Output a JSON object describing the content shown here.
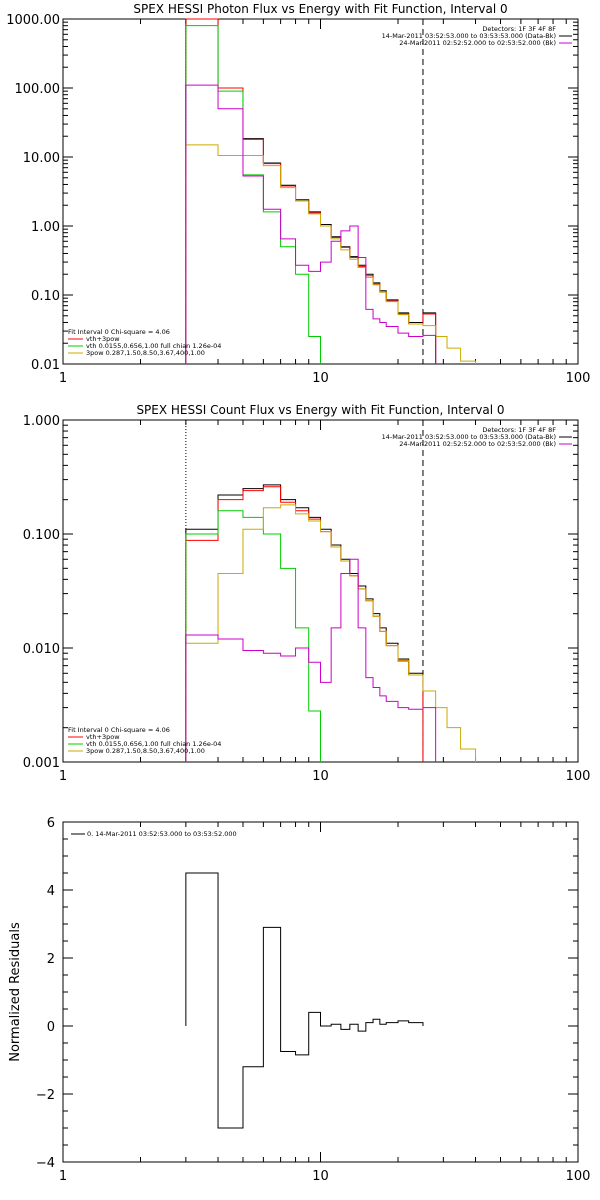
{
  "chart_data": [
    {
      "type": "line",
      "title": "SPEX HESSI Photon Flux vs Energy with Fit Function, Interval 0",
      "xscale": "log",
      "yscale": "log",
      "xlim": [
        1,
        100
      ],
      "ylim": [
        0.01,
        1000
      ],
      "xticks": [
        "1",
        "10",
        "100"
      ],
      "yticks": [
        "0.01",
        "0.10",
        "1.00",
        "10.00",
        "100.00",
        "1000.00"
      ],
      "xlabel": "",
      "ylabel": "",
      "bin_edges": [
        3,
        4,
        5,
        6,
        7,
        8,
        9,
        10,
        11,
        12,
        13,
        14,
        15,
        16,
        17,
        18,
        20,
        22,
        25,
        28,
        31,
        35,
        40
      ],
      "vlines": [
        {
          "x": 3,
          "style": "dotted"
        },
        {
          "x": 25,
          "style": "dashed"
        }
      ],
      "legend_top_right": [
        "Detectors: 1F 3F 4F 8F",
        "14-Mar-2011 03:52:53.000 to 03:53:53.000 (Data-Bk)",
        "24-Mar-2011 02:52:52.000 to 02:53:52.000 (Bk)"
      ],
      "legend_bottom_left": [
        "Fit Interval 0   Chi-square = 4.06",
        "vth+3pow",
        "vth 0.0155,0.656,1.00  full chian 1.26e-04",
        "3pow 0.287,1.50,8.50,3.67,400,1.00"
      ],
      "series": [
        {
          "name": "",
          "color": "#000000",
          "values": [
            1000,
            100,
            18.5,
            8.2,
            3.9,
            2.4,
            1.6,
            1.05,
            0.7,
            0.5,
            0.36,
            0.27,
            0.2,
            0.15,
            0.115,
            0.085,
            0.055,
            0.04,
            0.055,
            null,
            null,
            null
          ]
        },
        {
          "name": "vth+3pow",
          "color": "#ff0000",
          "values": [
            1000,
            100,
            18,
            8,
            3.8,
            2.3,
            1.55,
            1.0,
            0.68,
            0.49,
            0.35,
            0.26,
            0.19,
            0.145,
            0.11,
            0.082,
            0.053,
            0.038,
            0.053,
            null,
            null,
            null
          ]
        },
        {
          "name": "vth",
          "color": "#00cc00",
          "values": [
            800,
            90,
            5.5,
            1.6,
            0.5,
            0.2,
            0.025,
            null,
            null,
            null,
            null,
            null,
            null,
            null,
            null,
            null,
            null,
            null,
            null,
            null,
            null,
            null
          ]
        },
        {
          "name": "3pow",
          "color": "#ccaa00",
          "values": [
            15,
            10.5,
            10.5,
            7.5,
            3.6,
            2.3,
            1.5,
            1.0,
            0.65,
            0.45,
            0.33,
            0.25,
            0.18,
            0.14,
            0.11,
            0.08,
            0.052,
            0.038,
            0.036,
            0.025,
            0.017,
            0.011
          ]
        },
        {
          "name": "Bk",
          "color": "#cc00cc",
          "values": [
            110,
            50,
            5.3,
            1.75,
            0.65,
            0.27,
            0.22,
            0.3,
            0.6,
            0.85,
            1.0,
            0.35,
            0.062,
            0.045,
            0.04,
            0.035,
            0.028,
            0.025,
            0.026,
            null,
            null,
            null
          ]
        }
      ]
    },
    {
      "type": "line",
      "title": "SPEX HESSI Count Flux vs Energy with Fit Function, Interval 0",
      "xscale": "log",
      "yscale": "log",
      "xlim": [
        1,
        100
      ],
      "ylim": [
        0.001,
        1
      ],
      "xticks": [
        "1",
        "10",
        "100"
      ],
      "yticks": [
        "0.001",
        "0.010",
        "0.100",
        "1.000"
      ],
      "xlabel": "",
      "ylabel": "",
      "bin_edges": [
        3,
        4,
        5,
        6,
        7,
        8,
        9,
        10,
        11,
        12,
        13,
        14,
        15,
        16,
        17,
        18,
        20,
        22,
        25,
        28,
        31,
        35,
        40
      ],
      "vlines": [
        {
          "x": 3,
          "style": "dotted"
        },
        {
          "x": 25,
          "style": "dashed"
        }
      ],
      "legend_top_right": [
        "Detectors: 1F 3F 4F 8F",
        "14-Mar-2011 03:52:53.000 to 03:53:53.000 (Data-Bk)",
        "24-Mar-2011 02:52:52.000 to 02:53:52.000 (Bk)"
      ],
      "legend_bottom_left": [
        "Fit Interval 0   Chi-square = 4.06",
        "vth+3pow",
        "vth 0.0155,0.656,1.00  full chian 1.26e-04",
        "3pow 0.287,1.50,8.50,3.67,400,1.00"
      ],
      "series": [
        {
          "name": "",
          "color": "#000000",
          "values": [
            0.11,
            0.22,
            0.25,
            0.27,
            0.2,
            0.17,
            0.14,
            0.11,
            0.08,
            0.06,
            0.045,
            0.035,
            0.027,
            0.02,
            0.015,
            0.011,
            0.008,
            0.006,
            null,
            null,
            null,
            null
          ]
        },
        {
          "name": "vth+3pow",
          "color": "#ff0000",
          "values": [
            0.088,
            0.2,
            0.24,
            0.26,
            0.19,
            0.16,
            0.135,
            0.105,
            0.077,
            0.058,
            0.043,
            0.033,
            0.026,
            0.019,
            0.014,
            0.0105,
            0.0077,
            0.0058,
            null,
            null,
            null,
            null
          ]
        },
        {
          "name": "vth",
          "color": "#00cc00",
          "values": [
            0.1,
            0.16,
            0.14,
            0.1,
            0.05,
            0.015,
            0.0028,
            null,
            null,
            null,
            null,
            null,
            null,
            null,
            null,
            null,
            null,
            null,
            null,
            null,
            null,
            null
          ]
        },
        {
          "name": "3pow",
          "color": "#ccaa00",
          "values": [
            0.011,
            0.045,
            0.11,
            0.17,
            0.18,
            0.15,
            0.13,
            0.105,
            0.077,
            0.058,
            0.043,
            0.033,
            0.026,
            0.019,
            0.014,
            0.0105,
            0.0078,
            0.0058,
            0.0042,
            0.003,
            0.002,
            0.0013
          ]
        },
        {
          "name": "Bk",
          "color": "#cc00cc",
          "values": [
            0.013,
            0.012,
            0.0095,
            0.009,
            0.0085,
            0.01,
            0.0075,
            0.005,
            0.015,
            0.045,
            0.06,
            0.015,
            0.0055,
            0.0045,
            0.0038,
            0.0034,
            0.003,
            0.0029,
            0.003,
            null,
            null,
            null
          ]
        }
      ]
    },
    {
      "type": "line",
      "title": "",
      "xscale": "log",
      "yscale": "linear",
      "xlim": [
        1,
        100
      ],
      "ylim": [
        -4,
        6
      ],
      "xticks": [
        "1",
        "10",
        "100"
      ],
      "yticks": [
        "−4",
        "−2",
        "0",
        "2",
        "4",
        "6"
      ],
      "xlabel": "",
      "ylabel": "Normalized Residuals",
      "bin_edges": [
        3,
        4,
        5,
        6,
        7,
        8,
        9,
        10,
        11,
        12,
        13,
        14,
        15,
        16,
        17,
        18,
        20,
        22,
        25
      ],
      "legend": "0. 14-Mar-2011 03:52:53.000 to 03:53:52.000",
      "series": [
        {
          "name": "0. 14-Mar-2011 03:52:53.000 to 03:53:52.000",
          "color": "#000000",
          "values": [
            4.5,
            -3.0,
            -1.2,
            2.9,
            -0.75,
            -0.85,
            0.4,
            0.0,
            0.05,
            -0.1,
            0.05,
            -0.15,
            0.1,
            0.2,
            0.05,
            0.1,
            0.15,
            0.1
          ]
        }
      ]
    }
  ]
}
